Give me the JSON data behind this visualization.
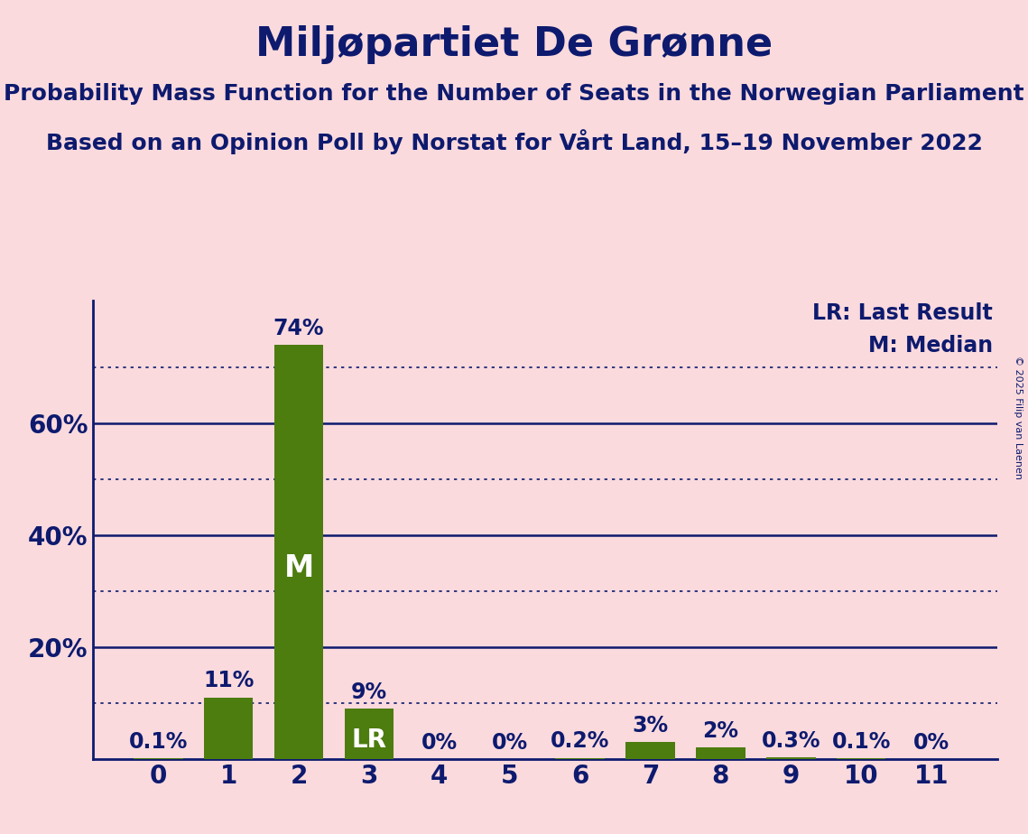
{
  "title": "Miljøpartiet De Grønne",
  "subtitle1": "Probability Mass Function for the Number of Seats in the Norwegian Parliament",
  "subtitle2": "Based on an Opinion Poll by Norstat for Vårt Land, 15–19 November 2022",
  "copyright": "© 2025 Filip van Laenen",
  "categories": [
    0,
    1,
    2,
    3,
    4,
    5,
    6,
    7,
    8,
    9,
    10,
    11
  ],
  "values": [
    0.001,
    0.11,
    0.74,
    0.09,
    0.0,
    0.0,
    0.002,
    0.03,
    0.02,
    0.003,
    0.001,
    0.0
  ],
  "bar_labels": [
    "0.1%",
    "11%",
    "74%",
    "9%",
    "0%",
    "0%",
    "0.2%",
    "3%",
    "2%",
    "0.3%",
    "0.1%",
    "0%"
  ],
  "bar_color": "#4d7c0f",
  "background_color": "#fadadd",
  "text_color": "#0d1a6e",
  "median_bar": 2,
  "lr_bar": 3,
  "legend_lr": "LR: Last Result",
  "legend_m": "M: Median",
  "solid_yticks": [
    0.2,
    0.4,
    0.6
  ],
  "solid_labels": [
    "20%",
    "40%",
    "60%"
  ],
  "dotted_yticks": [
    0.1,
    0.3,
    0.5,
    0.7
  ],
  "ylim": [
    0,
    0.82
  ],
  "title_fontsize": 32,
  "subtitle_fontsize": 18,
  "bar_label_fontsize": 17,
  "axis_tick_fontsize": 20,
  "legend_fontsize": 17,
  "m_label_fontsize": 24,
  "lr_label_fontsize": 20
}
